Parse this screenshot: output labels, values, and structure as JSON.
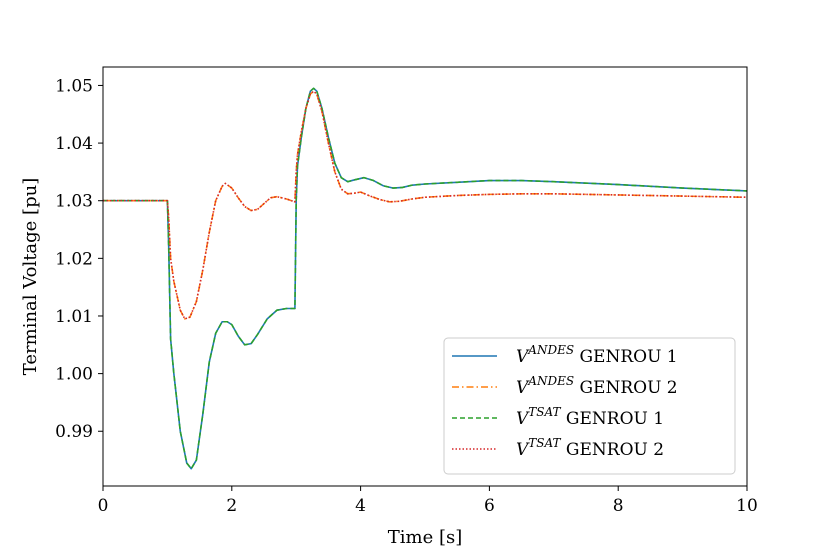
{
  "chart_data": {
    "type": "line",
    "title": "",
    "xlabel": "Time [s]",
    "ylabel": "Terminal Voltage [pu]",
    "xlim": [
      0,
      10
    ],
    "ylim": [
      0.9805,
      1.0532
    ],
    "xticks": [
      "0",
      "2",
      "4",
      "6",
      "8",
      "10"
    ],
    "yticks": [
      "0.99",
      "1.00",
      "1.01",
      "1.02",
      "1.03",
      "1.04",
      "1.05"
    ],
    "grid": false,
    "legend_position": "lower-right",
    "legend": [
      {
        "sym": "V",
        "sup": "ANDES",
        "rest": " GENROU 1"
      },
      {
        "sym": "V",
        "sup": "ANDES",
        "rest": " GENROU 2"
      },
      {
        "sym": "V",
        "sup": "TSAT",
        "rest": " GENROU 1"
      },
      {
        "sym": "V",
        "sup": "TSAT",
        "rest": " GENROU 2"
      }
    ],
    "series": [
      {
        "color": "#1f77b4",
        "style": "solid",
        "x": [
          0,
          1.0,
          1.02,
          1.05,
          1.1,
          1.2,
          1.3,
          1.37,
          1.45,
          1.55,
          1.65,
          1.75,
          1.85,
          1.93,
          2.0,
          2.1,
          2.2,
          2.3,
          2.4,
          2.55,
          2.7,
          2.85,
          2.98,
          3.0,
          3.02,
          3.08,
          3.15,
          3.22,
          3.27,
          3.32,
          3.4,
          3.5,
          3.6,
          3.7,
          3.8,
          3.9,
          4.05,
          4.2,
          4.35,
          4.5,
          4.65,
          4.8,
          5.0,
          5.5,
          6.0,
          6.5,
          7.0,
          8.0,
          9.0,
          10.0
        ],
        "y": [
          1.03,
          1.03,
          1.022,
          1.006,
          1.0,
          0.99,
          0.9845,
          0.9835,
          0.985,
          0.993,
          1.002,
          1.007,
          1.009,
          1.009,
          1.0085,
          1.0065,
          1.005,
          1.0052,
          1.0068,
          1.0095,
          1.011,
          1.0113,
          1.0113,
          1.03,
          1.036,
          1.041,
          1.046,
          1.049,
          1.0495,
          1.049,
          1.046,
          1.041,
          1.0365,
          1.034,
          1.0333,
          1.0336,
          1.034,
          1.0335,
          1.0326,
          1.0322,
          1.0323,
          1.0327,
          1.0329,
          1.0332,
          1.0335,
          1.0335,
          1.0333,
          1.0328,
          1.0322,
          1.0317
        ]
      },
      {
        "color": "#ff7f0e",
        "style": "dashdot",
        "x": [
          0,
          1.0,
          1.02,
          1.05,
          1.1,
          1.2,
          1.27,
          1.35,
          1.45,
          1.55,
          1.65,
          1.75,
          1.85,
          1.9,
          2.0,
          2.1,
          2.2,
          2.3,
          2.4,
          2.5,
          2.6,
          2.7,
          2.85,
          2.98,
          3.0,
          3.02,
          3.08,
          3.15,
          3.22,
          3.27,
          3.32,
          3.4,
          3.5,
          3.6,
          3.7,
          3.8,
          3.9,
          4.0,
          4.15,
          4.3,
          4.45,
          4.6,
          4.8,
          5.0,
          5.5,
          6.0,
          6.5,
          7.0,
          8.0,
          9.0,
          10.0
        ],
        "y": [
          1.03,
          1.03,
          1.027,
          1.02,
          1.016,
          1.011,
          1.0095,
          1.0098,
          1.0125,
          1.018,
          1.0245,
          1.03,
          1.0325,
          1.033,
          1.0322,
          1.0305,
          1.029,
          1.0283,
          1.0285,
          1.0295,
          1.0305,
          1.0307,
          1.0303,
          1.0298,
          1.035,
          1.038,
          1.042,
          1.046,
          1.0485,
          1.049,
          1.0485,
          1.0455,
          1.04,
          1.035,
          1.032,
          1.0312,
          1.0313,
          1.0315,
          1.0308,
          1.0302,
          1.0298,
          1.0299,
          1.0303,
          1.0306,
          1.0309,
          1.0311,
          1.0312,
          1.0312,
          1.031,
          1.0308,
          1.0306
        ]
      },
      {
        "color": "#2ca02c",
        "style": "dashed",
        "x": [
          0,
          1.0,
          1.02,
          1.05,
          1.1,
          1.2,
          1.3,
          1.37,
          1.45,
          1.55,
          1.65,
          1.75,
          1.85,
          1.93,
          2.0,
          2.1,
          2.2,
          2.3,
          2.4,
          2.55,
          2.7,
          2.85,
          2.98,
          3.0,
          3.02,
          3.08,
          3.15,
          3.22,
          3.27,
          3.32,
          3.4,
          3.5,
          3.6,
          3.7,
          3.8,
          3.9,
          4.05,
          4.2,
          4.35,
          4.5,
          4.65,
          4.8,
          5.0,
          5.5,
          6.0,
          6.5,
          7.0,
          8.0,
          9.0,
          10.0
        ],
        "y": [
          1.03,
          1.03,
          1.022,
          1.006,
          1.0,
          0.99,
          0.9845,
          0.9835,
          0.985,
          0.993,
          1.002,
          1.007,
          1.009,
          1.009,
          1.0085,
          1.0065,
          1.005,
          1.0052,
          1.0068,
          1.0095,
          1.011,
          1.0113,
          1.0113,
          1.03,
          1.036,
          1.041,
          1.046,
          1.049,
          1.0495,
          1.049,
          1.046,
          1.041,
          1.0365,
          1.034,
          1.0333,
          1.0336,
          1.034,
          1.0335,
          1.0326,
          1.0322,
          1.0323,
          1.0327,
          1.0329,
          1.0332,
          1.0335,
          1.0335,
          1.0333,
          1.0328,
          1.0322,
          1.0317
        ]
      },
      {
        "color": "#d62728",
        "style": "dotted",
        "x": [
          0,
          1.0,
          1.02,
          1.05,
          1.1,
          1.2,
          1.27,
          1.35,
          1.45,
          1.55,
          1.65,
          1.75,
          1.85,
          1.9,
          2.0,
          2.1,
          2.2,
          2.3,
          2.4,
          2.5,
          2.6,
          2.7,
          2.85,
          2.98,
          3.0,
          3.02,
          3.08,
          3.15,
          3.22,
          3.27,
          3.32,
          3.4,
          3.5,
          3.6,
          3.7,
          3.8,
          3.9,
          4.0,
          4.15,
          4.3,
          4.45,
          4.6,
          4.8,
          5.0,
          5.5,
          6.0,
          6.5,
          7.0,
          8.0,
          9.0,
          10.0
        ],
        "y": [
          1.03,
          1.03,
          1.027,
          1.02,
          1.016,
          1.011,
          1.0095,
          1.0098,
          1.0125,
          1.018,
          1.0245,
          1.03,
          1.0325,
          1.033,
          1.0322,
          1.0305,
          1.029,
          1.0283,
          1.0285,
          1.0295,
          1.0305,
          1.0307,
          1.0303,
          1.0298,
          1.035,
          1.038,
          1.042,
          1.046,
          1.0485,
          1.049,
          1.0485,
          1.0455,
          1.04,
          1.035,
          1.032,
          1.0312,
          1.0313,
          1.0315,
          1.0308,
          1.0302,
          1.0298,
          1.0299,
          1.0303,
          1.0306,
          1.0309,
          1.0311,
          1.0312,
          1.0312,
          1.031,
          1.0308,
          1.0306
        ]
      }
    ]
  }
}
